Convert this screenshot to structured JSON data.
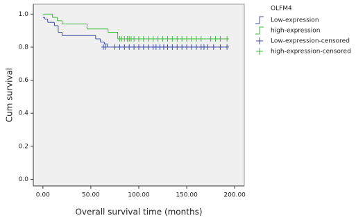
{
  "chart_data": {
    "type": "km",
    "xlabel": "Overall  survival time (months)",
    "ylabel": "Cum  survival",
    "legend_title": "OLFM4",
    "xlim": [
      -10,
      210
    ],
    "ylim": [
      -0.04,
      1.06
    ],
    "xticks": [
      {
        "value": 0,
        "label": "0.00"
      },
      {
        "value": 50,
        "label": "50.00"
      },
      {
        "value": 100,
        "label": "100.00"
      },
      {
        "value": 150,
        "label": "150.00"
      },
      {
        "value": 200,
        "label": "200.00"
      }
    ],
    "yticks": [
      {
        "value": 0,
        "label": "0.0"
      },
      {
        "value": 0.2,
        "label": "0.2"
      },
      {
        "value": 0.4,
        "label": "0.4"
      },
      {
        "value": 0.6,
        "label": "0.6"
      },
      {
        "value": 0.8,
        "label": "0.8"
      },
      {
        "value": 1.0,
        "label": "1.0"
      }
    ],
    "series": [
      {
        "name": "Low-expression",
        "color": "#3c4ba0",
        "kind": "step",
        "x": [
          0,
          2,
          5,
          12,
          16,
          20,
          55,
          60,
          64,
          67,
          192
        ],
        "values": [
          0.98,
          0.97,
          0.95,
          0.93,
          0.89,
          0.87,
          0.85,
          0.83,
          0.82,
          0.8,
          0.8
        ]
      },
      {
        "name": "high-expression",
        "color": "#3cb83c",
        "kind": "step",
        "x": [
          0,
          10,
          15,
          20,
          46,
          68,
          78,
          192
        ],
        "values": [
          1.0,
          0.98,
          0.96,
          0.94,
          0.91,
          0.89,
          0.85,
          0.85
        ]
      },
      {
        "name": "Low-expression-censored",
        "color": "#3c4ba0",
        "kind": "censor",
        "x": [
          63,
          65,
          75,
          80,
          85,
          90,
          95,
          100,
          105,
          110,
          115,
          118,
          122,
          126,
          130,
          135,
          140,
          145,
          150,
          155,
          160,
          165,
          168,
          172,
          178,
          185,
          192
        ],
        "values": [
          0.8,
          0.8,
          0.8,
          0.8,
          0.8,
          0.8,
          0.8,
          0.8,
          0.8,
          0.8,
          0.8,
          0.8,
          0.8,
          0.8,
          0.8,
          0.8,
          0.8,
          0.8,
          0.8,
          0.8,
          0.8,
          0.8,
          0.8,
          0.8,
          0.8,
          0.8,
          0.8
        ]
      },
      {
        "name": "high-expression-censored",
        "color": "#3cb83c",
        "kind": "censor",
        "x": [
          80,
          82,
          85,
          88,
          90,
          92,
          95,
          100,
          105,
          110,
          115,
          120,
          125,
          130,
          135,
          140,
          145,
          150,
          155,
          160,
          165,
          175,
          180,
          185,
          192
        ],
        "values": [
          0.85,
          0.85,
          0.85,
          0.85,
          0.85,
          0.85,
          0.85,
          0.85,
          0.85,
          0.85,
          0.85,
          0.85,
          0.85,
          0.85,
          0.85,
          0.85,
          0.85,
          0.85,
          0.85,
          0.85,
          0.85,
          0.85,
          0.85,
          0.85,
          0.85
        ]
      }
    ]
  }
}
